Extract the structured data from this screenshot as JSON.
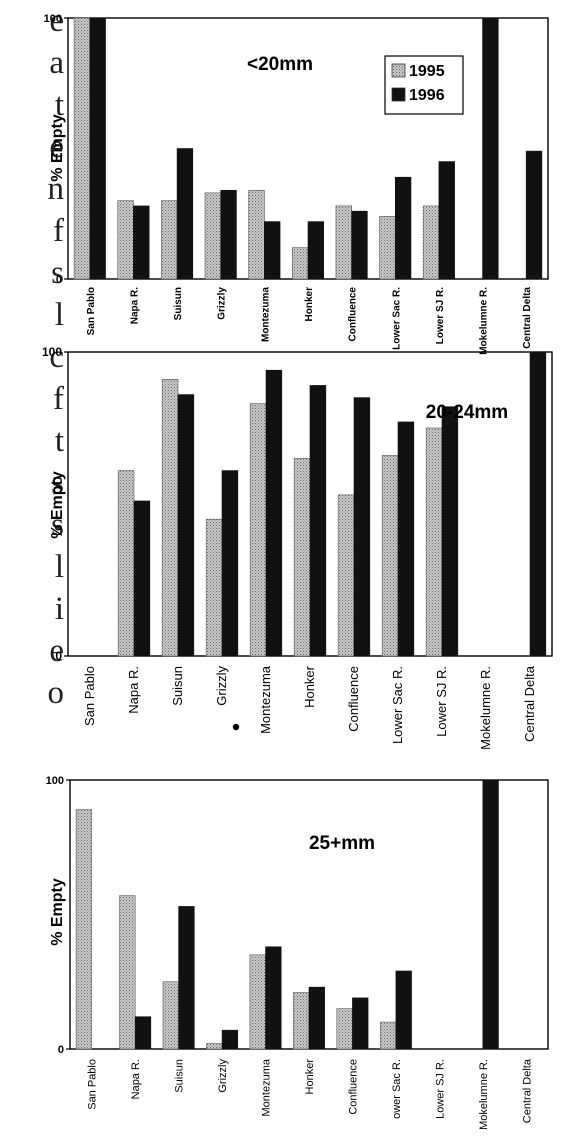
{
  "background_text": [
    "e",
    "a",
    "t",
    "e",
    "n",
    "f",
    "s",
    "l",
    "c",
    "f",
    "t",
    "s",
    "s",
    "l",
    "i",
    "e",
    "o",
    "l"
  ],
  "colors": {
    "s1995": "#b8b8b8",
    "s1996": "#111111",
    "axis": "#000000"
  },
  "chart_data": [
    {
      "type": "bar",
      "title": "<20mm",
      "ylabel": "% Empty",
      "xlabel": "",
      "ylim": [
        0,
        100
      ],
      "yticks": [
        "0",
        "100"
      ],
      "legend": "top-right",
      "categories": [
        "San Pablo",
        "Napa R.",
        "Suisun",
        "Grizzly",
        "Montezuma",
        "Honker",
        "Confluence",
        "Lower Sac R.",
        "Lower SJ R.",
        "Mokelumne R.",
        "Central Delta"
      ],
      "series": [
        {
          "name": "1995",
          "values": [
            100,
            30,
            30,
            33,
            34,
            12,
            28,
            24,
            28,
            0,
            0
          ]
        },
        {
          "name": "1996",
          "values": [
            100,
            28,
            50,
            34,
            22,
            22,
            26,
            39,
            45,
            100,
            49
          ]
        }
      ]
    },
    {
      "type": "bar",
      "title": "20-24mm",
      "ylabel": "% Empty",
      "xlabel": "",
      "ylim": [
        0,
        100
      ],
      "yticks": [
        "0",
        "100"
      ],
      "categories": [
        "San Pablo",
        "Napa R.",
        "Suisun",
        "Grizzly",
        "Montezuma",
        "Honker",
        "Confluence",
        "Lower Sac R.",
        "Lower SJ R.",
        "Mokelumne R.",
        "Central Delta"
      ],
      "series": [
        {
          "values": [
            0,
            61,
            91,
            45,
            83,
            65,
            53,
            66,
            75,
            0,
            0
          ]
        },
        {
          "values": [
            0,
            51,
            86,
            61,
            94,
            89,
            85,
            77,
            82,
            0,
            100
          ]
        }
      ]
    },
    {
      "type": "bar",
      "title": "25+mm",
      "ylabel": "% Empty",
      "xlabel": "",
      "ylim": [
        0,
        100
      ],
      "yticks": [
        "0",
        "100"
      ],
      "categories": [
        "San Pablo",
        "Napa R.",
        "Suisun",
        "Grizzly",
        "Montezuma",
        "Honker",
        "Confluence",
        "ower Sac R.",
        "Lower SJ R.",
        "Mokelumne R.",
        "Central Delta"
      ],
      "series": [
        {
          "values": [
            89,
            57,
            25,
            2,
            35,
            21,
            15,
            10,
            0,
            0,
            0
          ]
        },
        {
          "values": [
            0,
            12,
            53,
            7,
            38,
            23,
            19,
            29,
            0,
            100,
            0
          ]
        }
      ]
    }
  ]
}
